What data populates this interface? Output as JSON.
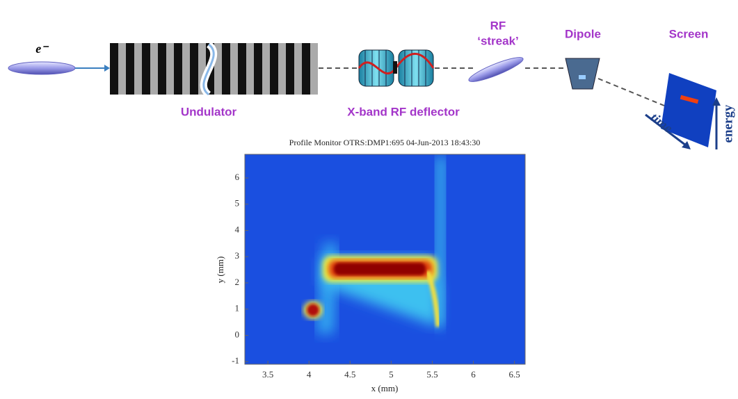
{
  "schematic": {
    "electron": "e⁻",
    "undulator": "Undulator",
    "deflector": "X-band RF deflector",
    "streak": [
      "RF",
      "‘streak’"
    ],
    "dipole": "Dipole",
    "screen": "Screen",
    "time": "time",
    "energy": "energy"
  },
  "plot": {
    "title": "Profile Monitor OTRS:DMP1:695 04-Jun-2013 18:43:30",
    "xlabel": "x (mm)",
    "ylabel": "y (mm)",
    "xlim": [
      3.22,
      6.63
    ],
    "ylim": [
      -1.1,
      6.9
    ],
    "xticks": [
      3.5,
      4,
      4.5,
      5,
      5.5,
      6,
      6.5
    ],
    "yticks": [
      -1,
      0,
      1,
      2,
      3,
      4,
      5,
      6
    ]
  }
}
